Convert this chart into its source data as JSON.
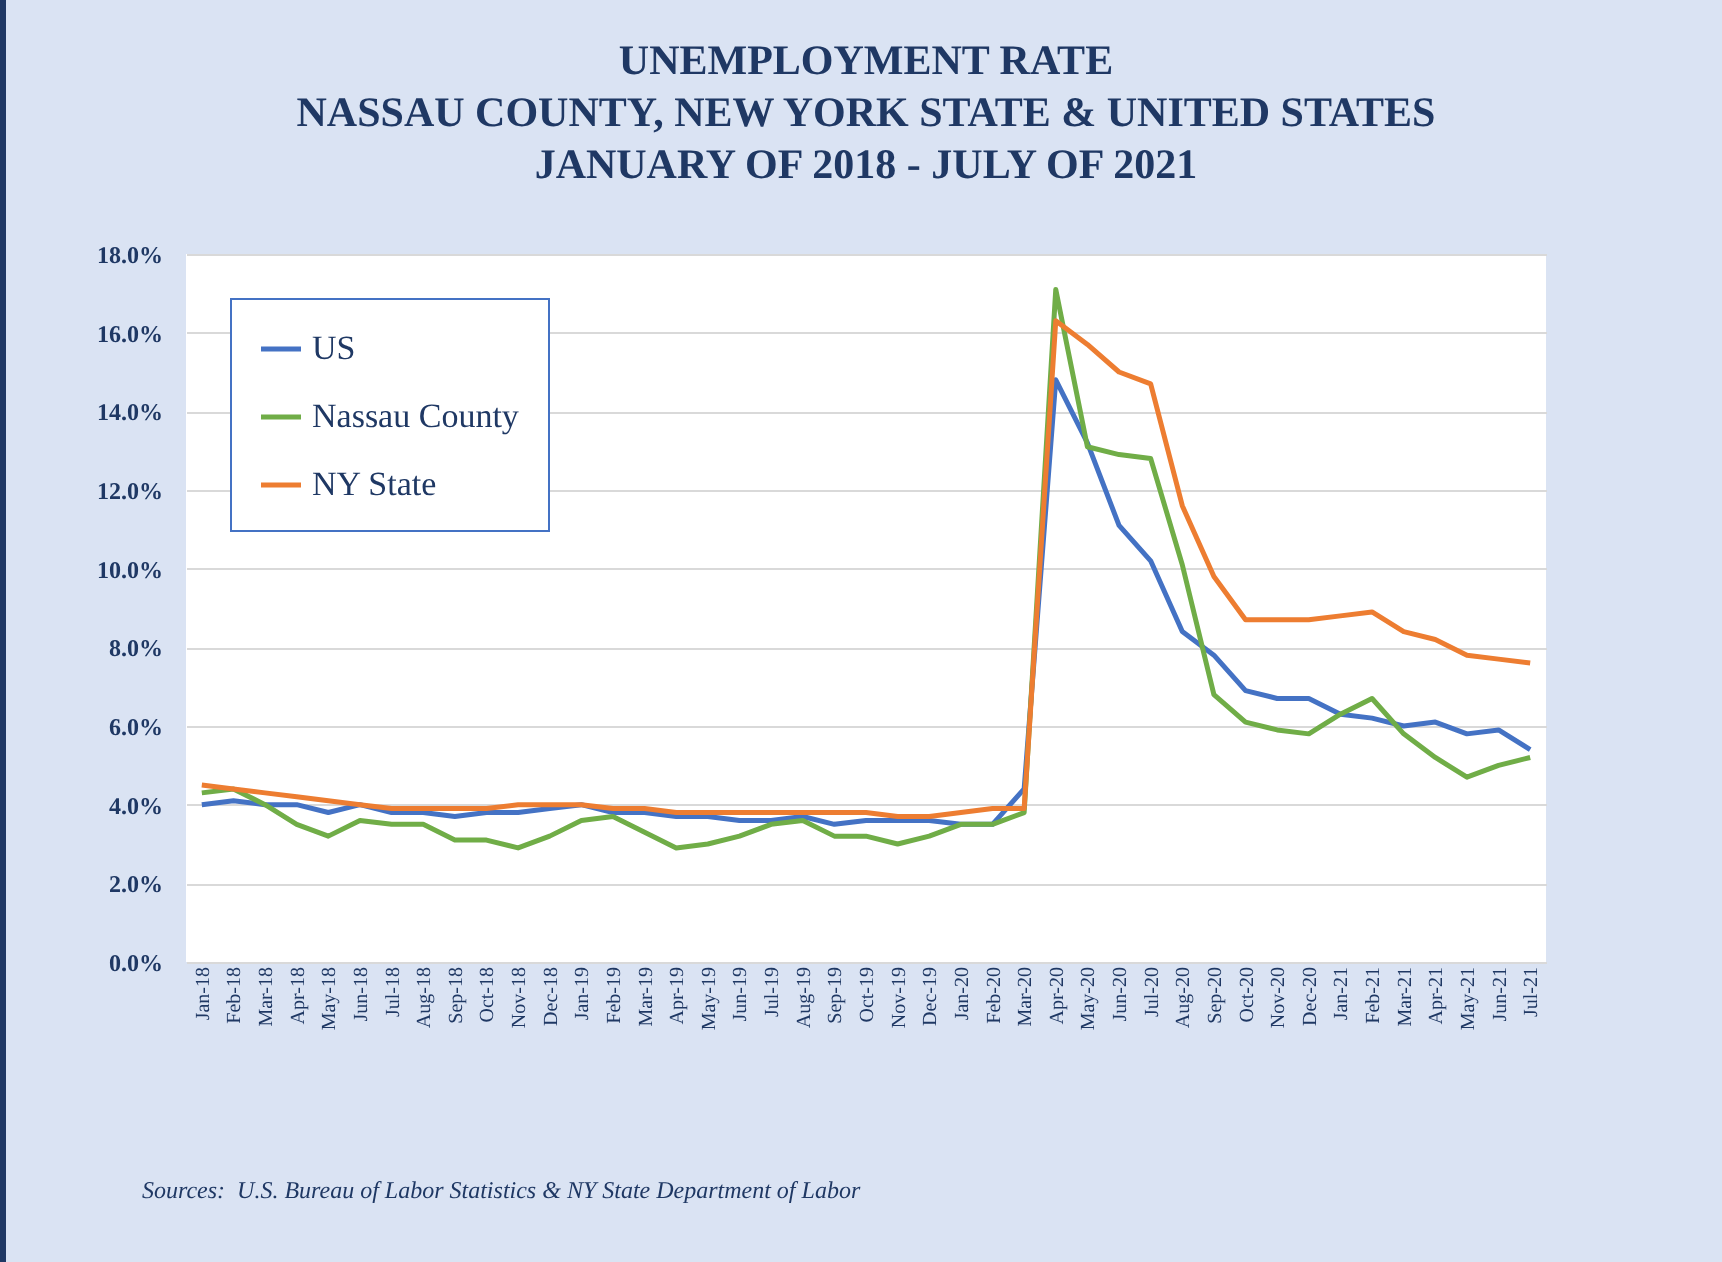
{
  "chart_data": {
    "type": "line",
    "title": "UNEMPLOYMENT RATE\nNASSAU COUNTY, NEW YORK STATE & UNITED STATES\nJANUARY OF 2018 - JULY OF 2021",
    "categories": [
      "Jan-18",
      "Feb-18",
      "Mar-18",
      "Apr-18",
      "May-18",
      "Jun-18",
      "Jul-18",
      "Aug-18",
      "Sep-18",
      "Oct-18",
      "Nov-18",
      "Dec-18",
      "Jan-19",
      "Feb-19",
      "Mar-19",
      "Apr-19",
      "May-19",
      "Jun-19",
      "Jul-19",
      "Aug-19",
      "Sep-19",
      "Oct-19",
      "Nov-19",
      "Dec-19",
      "Jan-20",
      "Feb-20",
      "Mar-20",
      "Apr-20",
      "May-20",
      "Jun-20",
      "Jul-20",
      "Aug-20",
      "Sep-20",
      "Oct-20",
      "Nov-20",
      "Dec-20",
      "Jan-21",
      "Feb-21",
      "Mar-21",
      "Apr-21",
      "May-21",
      "Jun-21",
      "Jul-21"
    ],
    "series": [
      {
        "name": "US",
        "color": "#4472c4",
        "values": [
          4.0,
          4.1,
          4.0,
          4.0,
          3.8,
          4.0,
          3.8,
          3.8,
          3.7,
          3.8,
          3.8,
          3.9,
          4.0,
          3.8,
          3.8,
          3.7,
          3.7,
          3.6,
          3.6,
          3.7,
          3.5,
          3.6,
          3.6,
          3.6,
          3.5,
          3.5,
          4.4,
          14.8,
          13.2,
          11.1,
          10.2,
          8.4,
          7.8,
          6.9,
          6.7,
          6.7,
          6.3,
          6.2,
          6.0,
          6.1,
          5.8,
          5.9,
          5.4
        ]
      },
      {
        "name": "Nassau County",
        "color": "#70ad47",
        "values": [
          4.3,
          4.4,
          4.0,
          3.5,
          3.2,
          3.6,
          3.5,
          3.5,
          3.1,
          3.1,
          2.9,
          3.2,
          3.6,
          3.7,
          3.3,
          2.9,
          3.0,
          3.2,
          3.5,
          3.6,
          3.2,
          3.2,
          3.0,
          3.2,
          3.5,
          3.5,
          3.8,
          17.1,
          13.1,
          12.9,
          12.8,
          10.1,
          6.8,
          6.1,
          5.9,
          5.8,
          6.3,
          6.7,
          5.8,
          5.2,
          4.7,
          5.0,
          5.2
        ]
      },
      {
        "name": "NY State",
        "color": "#ed7d31",
        "values": [
          4.5,
          4.4,
          4.3,
          4.2,
          4.1,
          4.0,
          3.9,
          3.9,
          3.9,
          3.9,
          4.0,
          4.0,
          4.0,
          3.9,
          3.9,
          3.8,
          3.8,
          3.8,
          3.8,
          3.8,
          3.8,
          3.8,
          3.7,
          3.7,
          3.8,
          3.9,
          3.9,
          16.3,
          15.7,
          15.0,
          14.7,
          11.6,
          9.8,
          8.7,
          8.7,
          8.7,
          8.8,
          8.9,
          8.4,
          8.2,
          7.8,
          7.7,
          7.6
        ]
      }
    ],
    "ylim": [
      0,
      18
    ],
    "yticks": [
      {
        "value": 0,
        "label": "0.0%"
      },
      {
        "value": 2,
        "label": "2.0%"
      },
      {
        "value": 4,
        "label": "4.0%"
      },
      {
        "value": 6,
        "label": "6.0%"
      },
      {
        "value": 8,
        "label": "8.0%"
      },
      {
        "value": 10,
        "label": "10.0%"
      },
      {
        "value": 12,
        "label": "12.0%"
      },
      {
        "value": 14,
        "label": "14.0%"
      },
      {
        "value": 16,
        "label": "16.0%"
      },
      {
        "value": 18,
        "label": "18.0%"
      }
    ],
    "grid": "y",
    "legend": "top left",
    "marker": "none",
    "line_style": "solid",
    "annotations": [
      "Sources:  U.S. Bureau of Labor Statistics & NY State Department of Labor"
    ]
  }
}
